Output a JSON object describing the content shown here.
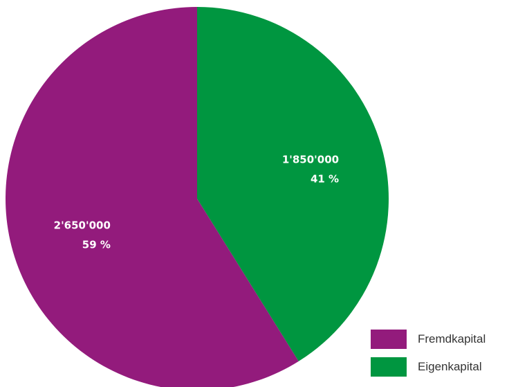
{
  "chart_data": {
    "type": "pie",
    "title": "",
    "categories": [
      "Fremdkapital",
      "Eigenkapital"
    ],
    "values": [
      2650000,
      1850000
    ],
    "value_labels": [
      "2'650'000",
      "1'850'000"
    ],
    "percent_labels": [
      "59 %",
      "41 %"
    ],
    "colors": [
      "#931b7c",
      "#009640"
    ],
    "start_angle_deg": 0,
    "direction": "clockwise",
    "legend": {
      "position": "bottom-right",
      "entries": [
        "Fremdkapital",
        "Eigenkapital"
      ]
    }
  }
}
